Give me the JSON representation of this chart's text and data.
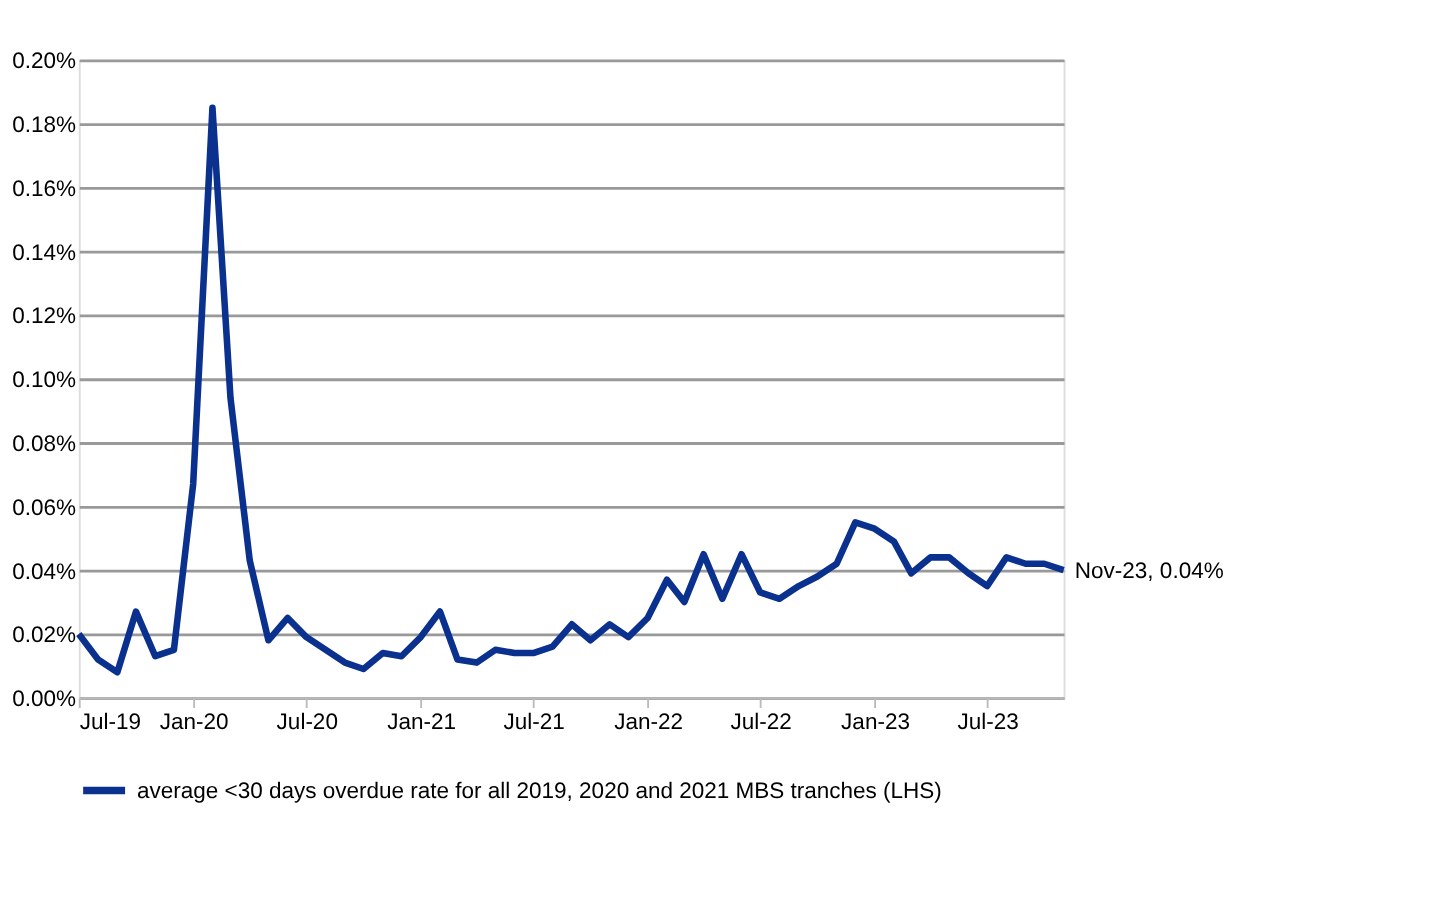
{
  "chart_data": {
    "type": "line",
    "x": [
      "2019-07",
      "2019-08",
      "2019-09",
      "2019-10",
      "2019-11",
      "2019-12",
      "2020-01",
      "2020-02",
      "2020-03",
      "2020-04",
      "2020-05",
      "2020-06",
      "2020-07",
      "2020-08",
      "2020-09",
      "2020-10",
      "2020-11",
      "2020-12",
      "2021-01",
      "2021-02",
      "2021-03",
      "2021-04",
      "2021-05",
      "2021-06",
      "2021-07",
      "2021-08",
      "2021-09",
      "2021-10",
      "2021-11",
      "2021-12",
      "2022-01",
      "2022-02",
      "2022-03",
      "2022-04",
      "2022-05",
      "2022-06",
      "2022-07",
      "2022-08",
      "2022-09",
      "2022-10",
      "2022-11",
      "2022-12",
      "2023-01",
      "2023-02",
      "2023-03",
      "2023-04",
      "2023-05",
      "2023-06",
      "2023-07",
      "2023-08",
      "2023-09",
      "2023-10",
      "2023-11"
    ],
    "series": [
      {
        "name": "average <30 days overdue rate for all 2019, 2020 and 2021 MBS tranches (LHS)",
        "color": "#0b318f",
        "values": [
          0.02,
          0.012,
          0.008,
          0.027,
          0.013,
          0.015,
          0.067,
          0.185,
          0.094,
          0.043,
          0.018,
          0.025,
          0.019,
          0.015,
          0.011,
          0.009,
          0.014,
          0.013,
          0.019,
          0.027,
          0.012,
          0.011,
          0.015,
          0.014,
          0.014,
          0.016,
          0.023,
          0.018,
          0.023,
          0.019,
          0.025,
          0.037,
          0.03,
          0.045,
          0.031,
          0.045,
          0.033,
          0.031,
          0.035,
          0.038,
          0.042,
          0.055,
          0.053,
          0.049,
          0.039,
          0.044,
          0.044,
          0.039,
          0.035,
          0.044,
          0.042,
          0.042,
          0.04
        ]
      }
    ],
    "xlim": [
      "2019-07",
      "2023-11"
    ],
    "xticks": [
      {
        "value": "2019-07",
        "label": "Jul-19"
      },
      {
        "value": "2020-01",
        "label": "Jan-20"
      },
      {
        "value": "2020-07",
        "label": "Jul-20"
      },
      {
        "value": "2021-01",
        "label": "Jan-21"
      },
      {
        "value": "2021-07",
        "label": "Jul-21"
      },
      {
        "value": "2022-01",
        "label": "Jan-22"
      },
      {
        "value": "2022-07",
        "label": "Jul-22"
      },
      {
        "value": "2023-01",
        "label": "Jan-23"
      },
      {
        "value": "2023-07",
        "label": "Jul-23"
      }
    ],
    "ylim": [
      0,
      0.2
    ],
    "yticks": [
      {
        "value": 0,
        "label": "0.00%"
      },
      {
        "value": 0.02,
        "label": "0.02%"
      },
      {
        "value": 0.04,
        "label": "0.04%"
      },
      {
        "value": 0.06,
        "label": "0.06%"
      },
      {
        "value": 0.08,
        "label": "0.08%"
      },
      {
        "value": 0.1,
        "label": "0.10%"
      },
      {
        "value": 0.12,
        "label": "0.12%"
      },
      {
        "value": 0.14,
        "label": "0.14%"
      },
      {
        "value": 0.16,
        "label": "0.16%"
      },
      {
        "value": 0.18,
        "label": "0.18%"
      },
      {
        "value": 0.2,
        "label": "0.20%"
      }
    ],
    "annotations": [
      {
        "text": "Nov-23, 0.04%",
        "x": "2023-11",
        "y": 0.04
      }
    ],
    "grid": "y",
    "legend": "bottom",
    "marker": "none",
    "line_style": "solid"
  }
}
